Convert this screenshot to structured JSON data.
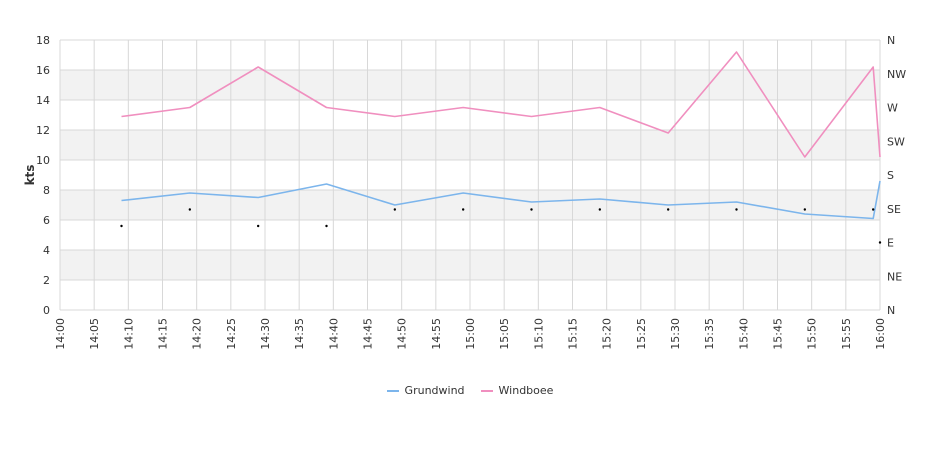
{
  "chart_data": {
    "type": "line",
    "ylabel": "kts",
    "ylim": [
      0,
      18
    ],
    "y_ticks": [
      "0",
      "2",
      "4",
      "6",
      "8",
      "10",
      "12",
      "14",
      "16",
      "18"
    ],
    "x_tick_labels": [
      "14:00",
      "14:05",
      "14:10",
      "14:15",
      "14:20",
      "14:25",
      "14:30",
      "14:35",
      "14:40",
      "14:45",
      "14:50",
      "14:55",
      "15:00",
      "15:05",
      "15:10",
      "15:15",
      "15:20",
      "15:25",
      "15:30",
      "15:35",
      "15:40",
      "15:45",
      "15:50",
      "15:55",
      "16:00"
    ],
    "y2_ticks": [
      "N",
      "NE",
      "E",
      "SE",
      "S",
      "SW",
      "W",
      "NW",
      "N"
    ],
    "grid": true,
    "legend_position": "bottom-center",
    "series": [
      {
        "name": "Grundwind",
        "color": "#7cb5ec",
        "points": [
          {
            "t": "14:09",
            "v": 7.3
          },
          {
            "t": "14:19",
            "v": 7.8
          },
          {
            "t": "14:29",
            "v": 7.5
          },
          {
            "t": "14:39",
            "v": 8.4
          },
          {
            "t": "14:49",
            "v": 7.0
          },
          {
            "t": "14:59",
            "v": 7.8
          },
          {
            "t": "15:09",
            "v": 7.2
          },
          {
            "t": "15:19",
            "v": 7.4
          },
          {
            "t": "15:29",
            "v": 7.0
          },
          {
            "t": "15:39",
            "v": 7.2
          },
          {
            "t": "15:49",
            "v": 6.4
          },
          {
            "t": "15:59",
            "v": 6.1
          },
          {
            "t": "16:00",
            "v": 8.6
          }
        ]
      },
      {
        "name": "Windboee",
        "color": "#f08fbf",
        "points": [
          {
            "t": "14:09",
            "v": 12.9
          },
          {
            "t": "14:19",
            "v": 13.5
          },
          {
            "t": "14:29",
            "v": 16.2
          },
          {
            "t": "14:39",
            "v": 13.5
          },
          {
            "t": "14:49",
            "v": 12.9
          },
          {
            "t": "14:59",
            "v": 13.5
          },
          {
            "t": "15:09",
            "v": 12.9
          },
          {
            "t": "15:19",
            "v": 13.5
          },
          {
            "t": "15:29",
            "v": 11.8
          },
          {
            "t": "15:39",
            "v": 17.2
          },
          {
            "t": "15:49",
            "v": 10.2
          },
          {
            "t": "15:59",
            "v": 16.2
          },
          {
            "t": "16:00",
            "v": 10.2
          }
        ]
      },
      {
        "name": "direction",
        "color": "#000000",
        "points": [
          {
            "t": "14:09",
            "v": 5.6
          },
          {
            "t": "14:19",
            "v": 6.7
          },
          {
            "t": "14:29",
            "v": 5.6
          },
          {
            "t": "14:39",
            "v": 5.6
          },
          {
            "t": "14:49",
            "v": 6.7
          },
          {
            "t": "14:59",
            "v": 6.7
          },
          {
            "t": "15:09",
            "v": 6.7
          },
          {
            "t": "15:19",
            "v": 6.7
          },
          {
            "t": "15:29",
            "v": 6.7
          },
          {
            "t": "15:39",
            "v": 6.7
          },
          {
            "t": "15:49",
            "v": 6.7
          },
          {
            "t": "15:59",
            "v": 6.7
          },
          {
            "t": "16:00",
            "v": 4.5
          }
        ]
      }
    ],
    "legend": [
      {
        "name": "Grundwind",
        "color": "#7cb5ec"
      },
      {
        "name": "Windboee",
        "color": "#f08fbf"
      }
    ],
    "band_color": "#f2f2f2",
    "gridline_color": "#d8d8d8"
  }
}
